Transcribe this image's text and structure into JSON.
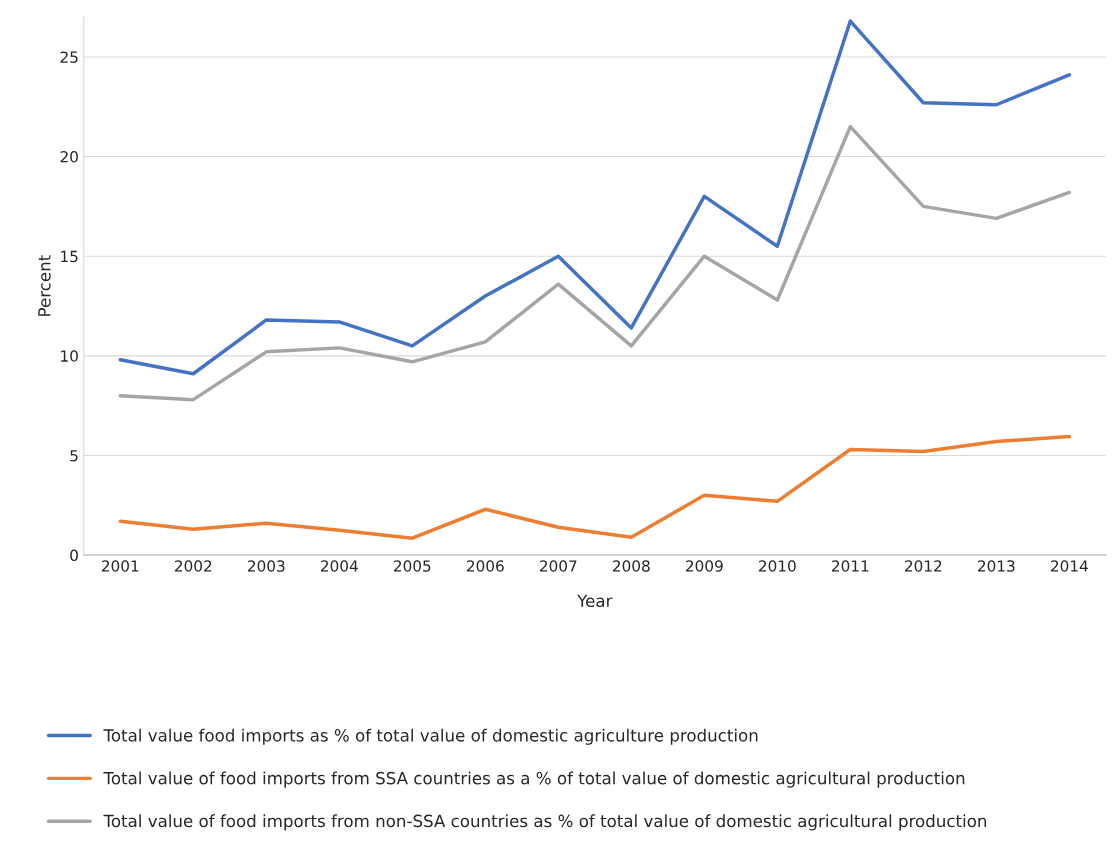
{
  "chart_data": {
    "type": "line",
    "xlabel": "Year",
    "ylabel": "Percent",
    "categories": [
      "2001",
      "2002",
      "2003",
      "2004",
      "2005",
      "2006",
      "2007",
      "2008",
      "2009",
      "2010",
      "2011",
      "2012",
      "2013",
      "2014"
    ],
    "series": [
      {
        "name": "Total value food imports as % of total value of domestic agriculture production",
        "color": "#4472c4",
        "values": [
          9.8,
          9.1,
          11.8,
          11.7,
          10.5,
          13.0,
          15.0,
          11.4,
          18.0,
          15.5,
          26.8,
          22.7,
          22.6,
          24.1
        ]
      },
      {
        "name": "Total value of food imports from SSA countries as a % of total value of domestic agricultural production",
        "color": "#ed7d31",
        "values": [
          1.7,
          1.3,
          1.6,
          1.25,
          0.85,
          2.3,
          1.4,
          0.9,
          3.0,
          2.7,
          5.3,
          5.2,
          5.7,
          5.95
        ]
      },
      {
        "name": "Total value of food imports from non-SSA countries as % of total value of domestic agricultural production",
        "color": "#a5a5a5",
        "values": [
          8.0,
          7.8,
          10.2,
          10.4,
          9.7,
          10.7,
          13.6,
          10.5,
          15.0,
          12.8,
          21.5,
          17.5,
          16.9,
          18.2
        ]
      }
    ],
    "ylim": [
      0,
      27
    ],
    "yticks": [
      0,
      5,
      10,
      15,
      20,
      25
    ],
    "grid": "y",
    "legend": "bottom",
    "marker": "none",
    "line_style": "solid"
  }
}
